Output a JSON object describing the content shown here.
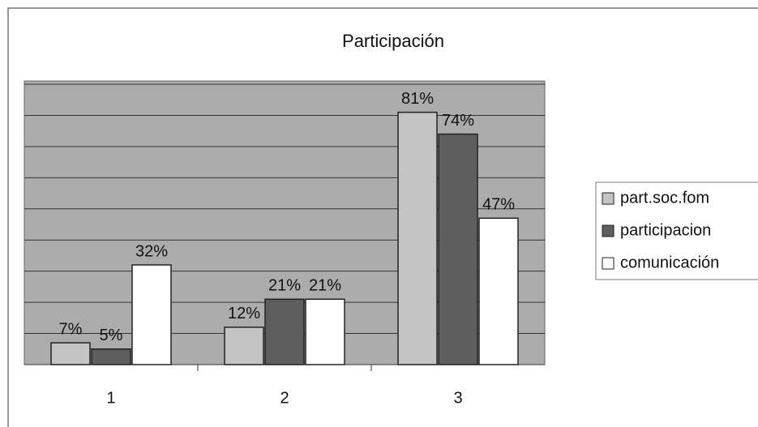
{
  "chart_data": {
    "type": "bar",
    "title": "Participación",
    "categories": [
      "1",
      "2",
      "3"
    ],
    "series": [
      {
        "name": "part.soc.fom",
        "color": "#c4c4c4",
        "values": [
          7,
          12,
          81
        ],
        "value_labels": [
          "7%",
          "12%",
          "81%"
        ]
      },
      {
        "name": "participacion",
        "color": "#5e5e5e",
        "values": [
          5,
          21,
          74
        ],
        "value_labels": [
          "5%",
          "21%",
          "74%"
        ]
      },
      {
        "name": "comunicación",
        "color": "#ffffff",
        "values": [
          32,
          21,
          47
        ],
        "value_labels": [
          "32%",
          "21%",
          "47%"
        ]
      }
    ],
    "ylim": [
      0,
      90
    ],
    "yticks": [
      0,
      10,
      20,
      30,
      40,
      50,
      60,
      70,
      80,
      90
    ],
    "grid": true,
    "legend": "right"
  }
}
